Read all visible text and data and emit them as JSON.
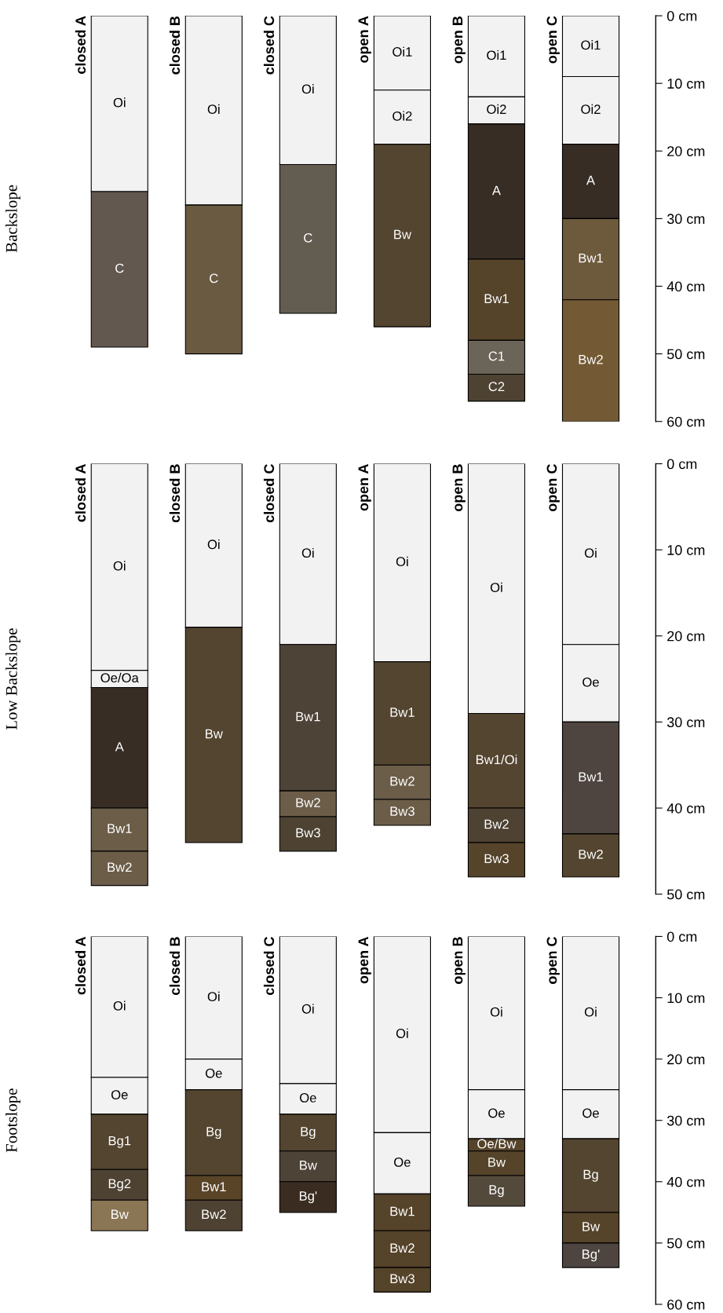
{
  "chart_data": [
    {
      "type": "bar",
      "stacked": true,
      "ylabel": "Backslope",
      "categories": [
        "closed A",
        "closed B",
        "closed C",
        "open A",
        "open B",
        "open C"
      ],
      "ylim": [
        60,
        0
      ],
      "yticks": [
        {
          "value": 0,
          "label": "0 cm"
        },
        {
          "value": 10,
          "label": "10 cm"
        },
        {
          "value": 20,
          "label": "20 cm"
        },
        {
          "value": 30,
          "label": "30 cm"
        },
        {
          "value": 40,
          "label": "40 cm"
        },
        {
          "value": 50,
          "label": "50 cm"
        },
        {
          "value": 60,
          "label": "60 cm"
        }
      ],
      "series": [
        {
          "values": [
            26,
            28,
            22,
            11,
            12,
            9
          ],
          "colors": [
            "#f2f2f2",
            "#f2f2f2",
            "#f2f2f2",
            "#f2f2f2",
            "#f2f2f2",
            "#f2f2f2"
          ],
          "value_labels": [
            "Oi",
            "Oi",
            "Oi",
            "Oi1",
            "Oi1",
            "Oi1"
          ]
        },
        {
          "values": [
            23,
            22,
            22,
            8,
            4,
            10
          ],
          "colors": [
            "#625850",
            "#6b5a42",
            "#635c50",
            "#f2f2f2",
            "#f2f2f2",
            "#f2f2f2"
          ],
          "value_labels": [
            "C",
            "C",
            "C",
            "Oi2",
            "Oi2",
            "Oi2"
          ]
        },
        {
          "values": [
            null,
            null,
            null,
            27,
            20,
            11
          ],
          "colors": [
            null,
            null,
            null,
            "#544530",
            "#372d25",
            "#372d25"
          ],
          "value_labels": [
            null,
            null,
            null,
            "Bw",
            "A",
            "A"
          ]
        },
        {
          "values": [
            null,
            null,
            null,
            null,
            12,
            12
          ],
          "colors": [
            null,
            null,
            null,
            null,
            "#55432a",
            "#6d5a3c"
          ],
          "value_labels": [
            null,
            null,
            null,
            null,
            "Bw1",
            "Bw1"
          ]
        },
        {
          "values": [
            null,
            null,
            null,
            null,
            5,
            18
          ],
          "colors": [
            null,
            null,
            null,
            null,
            "#6b6458",
            "#735a34"
          ],
          "value_labels": [
            null,
            null,
            null,
            null,
            "C1",
            "Bw2"
          ]
        },
        {
          "values": [
            null,
            null,
            null,
            null,
            4,
            null
          ],
          "colors": [
            null,
            null,
            null,
            null,
            "#4e4232",
            null
          ],
          "value_labels": [
            null,
            null,
            null,
            null,
            "C2",
            null
          ]
        }
      ]
    },
    {
      "type": "bar",
      "stacked": true,
      "ylabel": "Low Backslope",
      "categories": [
        "closed A",
        "closed B",
        "closed C",
        "open A",
        "open B",
        "open C"
      ],
      "ylim": [
        50,
        0
      ],
      "yticks": [
        {
          "value": 0,
          "label": "0 cm"
        },
        {
          "value": 10,
          "label": "10 cm"
        },
        {
          "value": 20,
          "label": "20 cm"
        },
        {
          "value": 30,
          "label": "30 cm"
        },
        {
          "value": 40,
          "label": "40 cm"
        },
        {
          "value": 50,
          "label": "50 cm"
        }
      ],
      "series": [
        {
          "values": [
            24,
            19,
            21,
            23,
            29,
            21
          ],
          "colors": [
            "#f2f2f2",
            "#f2f2f2",
            "#f2f2f2",
            "#f2f2f2",
            "#f2f2f2",
            "#f2f2f2"
          ],
          "value_labels": [
            "Oi",
            "Oi",
            "Oi",
            "Oi",
            "Oi",
            "Oi"
          ]
        },
        {
          "values": [
            2,
            25,
            17,
            12,
            11,
            9
          ],
          "colors": [
            "#f2f2f2",
            "#544530",
            "#4e4337",
            "#544530",
            "#544530",
            "#f2f2f2"
          ],
          "value_labels": [
            "Oe/Oa",
            "Bw",
            "Bw1",
            "Bw1",
            "Bw1/Oi",
            "Oe"
          ]
        },
        {
          "values": [
            14,
            null,
            3,
            4,
            4,
            13
          ],
          "colors": [
            "#372d25",
            null,
            "#6b5d48",
            "#6b5d48",
            "#4e4232",
            "#4e4540"
          ],
          "value_labels": [
            "A",
            null,
            "Bw2",
            "Bw2",
            "Bw2",
            "Bw1"
          ]
        },
        {
          "values": [
            5,
            null,
            4,
            3,
            4,
            5
          ],
          "colors": [
            "#6b5d48",
            null,
            "#4e4232",
            "#6b5d48",
            "#55432a",
            "#544530"
          ],
          "value_labels": [
            "Bw1",
            null,
            "Bw3",
            "Bw3",
            "Bw3",
            "Bw2"
          ]
        },
        {
          "values": [
            4,
            null,
            null,
            null,
            null,
            null
          ],
          "colors": [
            "#6b5d48",
            null,
            null,
            null,
            null,
            null
          ],
          "value_labels": [
            "Bw2",
            null,
            null,
            null,
            null,
            null
          ]
        }
      ]
    },
    {
      "type": "bar",
      "stacked": true,
      "ylabel": "Footslope",
      "categories": [
        "closed A",
        "closed B",
        "closed C",
        "open A",
        "open B",
        "open C"
      ],
      "ylim": [
        60,
        0
      ],
      "yticks": [
        {
          "value": 0,
          "label": "0 cm"
        },
        {
          "value": 10,
          "label": "10 cm"
        },
        {
          "value": 20,
          "label": "20 cm"
        },
        {
          "value": 30,
          "label": "30 cm"
        },
        {
          "value": 40,
          "label": "40 cm"
        },
        {
          "value": 50,
          "label": "50 cm"
        },
        {
          "value": 60,
          "label": "60 cm"
        }
      ],
      "series": [
        {
          "values": [
            23,
            20,
            24,
            32,
            25,
            25
          ],
          "colors": [
            "#f2f2f2",
            "#f2f2f2",
            "#f2f2f2",
            "#f2f2f2",
            "#f2f2f2",
            "#f2f2f2"
          ],
          "value_labels": [
            "Oi",
            "Oi",
            "Oi",
            "Oi",
            "Oi",
            "Oi"
          ]
        },
        {
          "values": [
            6,
            5,
            5,
            10,
            8,
            8
          ],
          "colors": [
            "#f2f2f2",
            "#f2f2f2",
            "#f2f2f2",
            "#f2f2f2",
            "#f2f2f2",
            "#f2f2f2"
          ],
          "value_labels": [
            "Oe",
            "Oe",
            "Oe",
            "Oe",
            "Oe",
            "Oe"
          ]
        },
        {
          "values": [
            9,
            14,
            6,
            6,
            2,
            12
          ],
          "colors": [
            "#544530",
            "#544530",
            "#544530",
            "#55432a",
            "#55432a",
            "#544530"
          ],
          "value_labels": [
            "Bg1",
            "Bg",
            "Bg",
            "Bw1",
            "Oe/Bw",
            "Bg"
          ]
        },
        {
          "values": [
            5,
            4,
            5,
            6,
            4,
            5
          ],
          "colors": [
            "#4e4232",
            "#5a4428",
            "#4e4337",
            "#55432a",
            "#55432a",
            "#55432a"
          ],
          "value_labels": [
            "Bg2",
            "Bw1",
            "Bw",
            "Bw2",
            "Bw",
            "Bw"
          ]
        },
        {
          "values": [
            5,
            5,
            5,
            4,
            5,
            4
          ],
          "colors": [
            "#8a7555",
            "#4e4232",
            "#3a2c20",
            "#55432a",
            "#544a3c",
            "#4e4540"
          ],
          "value_labels": [
            "Bw",
            "Bw2",
            "Bg'",
            "Bw3",
            "Bg",
            "Bg'"
          ]
        }
      ]
    }
  ]
}
